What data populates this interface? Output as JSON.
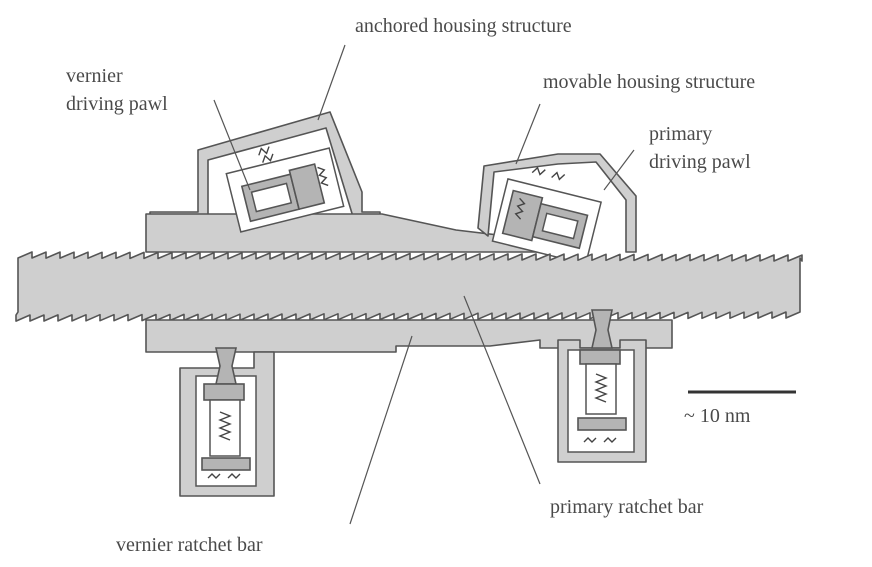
{
  "labels": {
    "anchored_housing": "anchored housing structure",
    "vernier_pawl_line1": "vernier",
    "vernier_pawl_line2": "driving pawl",
    "movable_housing": "movable housing structure",
    "primary_pawl_line1": "primary",
    "primary_pawl_line2": "driving pawl",
    "scale": "~ 10 nm",
    "primary_bar": "primary ratchet bar",
    "vernier_bar": "vernier ratchet bar"
  },
  "colors": {
    "fill": "#cfcfcf",
    "outline": "#555555",
    "text": "#4a4a4a"
  }
}
